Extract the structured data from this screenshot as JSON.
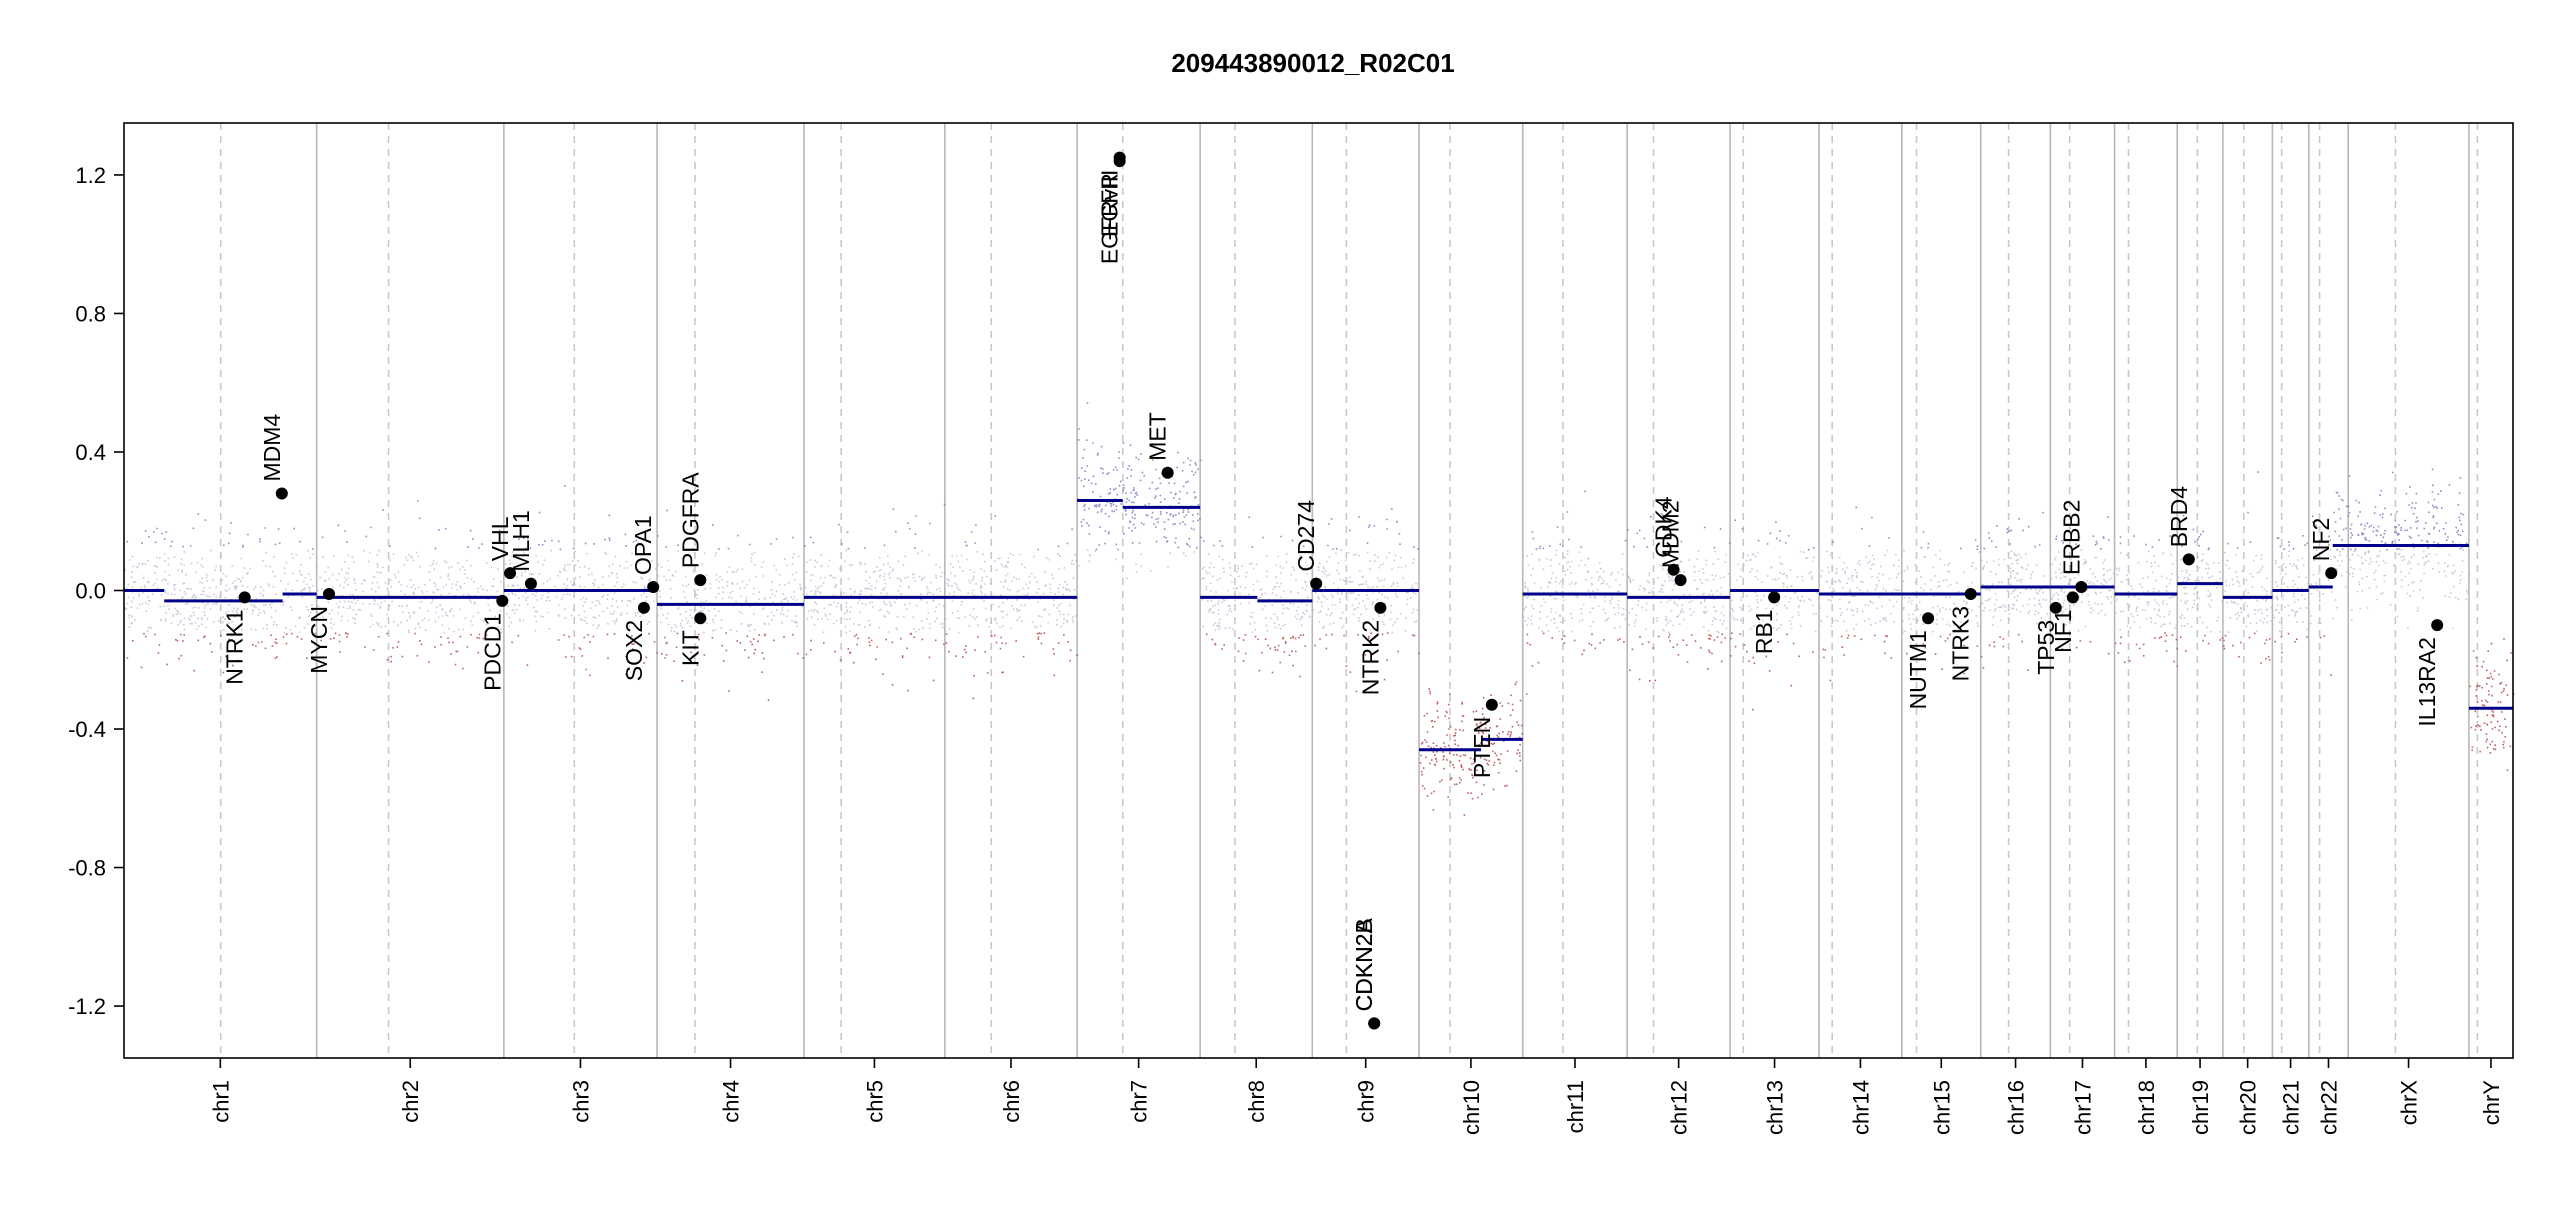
{
  "chart_data": {
    "type": "scatter",
    "title": "209443890012_R02C01",
    "xlabel": "",
    "ylabel": "",
    "ylim": [
      -1.35,
      1.35
    ],
    "y_ticks": [
      -1.2,
      -0.8,
      -0.4,
      0.0,
      0.4,
      0.8,
      1.2
    ],
    "y_tick_labels": [
      "-1.2",
      "-0.8",
      "-0.4",
      "0.0",
      "0.4",
      "0.8",
      "1.2"
    ],
    "grid": false,
    "colors": {
      "segment": "#00008b",
      "gain_points": "#7b7bbd",
      "loss_points": "#b24a4a",
      "neutral_points": "#bcbcd6",
      "chromosome_border": "#b8b8b8",
      "centromere_line": "#c8c8c8",
      "gene_point": "#000000"
    },
    "chromosomes": [
      {
        "name": "chr1",
        "start": 0.0,
        "end": 249.0,
        "centromere": 125.0
      },
      {
        "name": "chr2",
        "start": 249.0,
        "end": 491.0,
        "centromere": 342.0
      },
      {
        "name": "chr3",
        "start": 491.0,
        "end": 689.0,
        "centromere": 582.0
      },
      {
        "name": "chr4",
        "start": 689.0,
        "end": 879.0,
        "centromere": 738.0
      },
      {
        "name": "chr5",
        "start": 879.0,
        "end": 1061.0,
        "centromere": 927.0
      },
      {
        "name": "chr6",
        "start": 1061.0,
        "end": 1232.0,
        "centromere": 1121.0
      },
      {
        "name": "chr7",
        "start": 1232.0,
        "end": 1391.0,
        "centromere": 1291.0
      },
      {
        "name": "chr8",
        "start": 1391.0,
        "end": 1536.0,
        "centromere": 1436.0
      },
      {
        "name": "chr9",
        "start": 1536.0,
        "end": 1674.0,
        "centromere": 1580.0
      },
      {
        "name": "chr10",
        "start": 1674.0,
        "end": 1808.0,
        "centromere": 1714.0
      },
      {
        "name": "chr11",
        "start": 1808.0,
        "end": 1943.0,
        "centromere": 1860.0
      },
      {
        "name": "chr12",
        "start": 1943.0,
        "end": 2076.0,
        "centromere": 1977.0
      },
      {
        "name": "chr13",
        "start": 2076.0,
        "end": 2191.0,
        "centromere": 2093.0
      },
      {
        "name": "chr14",
        "start": 2191.0,
        "end": 2298.0,
        "centromere": 2208.0
      },
      {
        "name": "chr15",
        "start": 2298.0,
        "end": 2400.0,
        "centromere": 2317.0
      },
      {
        "name": "chr16",
        "start": 2400.0,
        "end": 2490.0,
        "centromere": 2436.0
      },
      {
        "name": "chr17",
        "start": 2490.0,
        "end": 2573.0,
        "centromere": 2515.0
      },
      {
        "name": "chr18",
        "start": 2573.0,
        "end": 2654.0,
        "centromere": 2591.0
      },
      {
        "name": "chr19",
        "start": 2654.0,
        "end": 2713.0,
        "centromere": 2680.0
      },
      {
        "name": "chr20",
        "start": 2713.0,
        "end": 2777.0,
        "centromere": 2740.0
      },
      {
        "name": "chr21",
        "start": 2777.0,
        "end": 2824.0,
        "centromere": 2789.0
      },
      {
        "name": "chr22",
        "start": 2824.0,
        "end": 2875.0,
        "centromere": 2838.0
      },
      {
        "name": "chrX",
        "start": 2875.0,
        "end": 3031.0,
        "centromere": 2936.0
      },
      {
        "name": "chrY",
        "start": 3031.0,
        "end": 3088.0,
        "centromere": 3042.0
      }
    ],
    "x_range": [
      0,
      3088
    ],
    "segments": [
      {
        "start": 0.0,
        "end": 52.0,
        "value": 0.0
      },
      {
        "start": 52.0,
        "end": 205.0,
        "value": -0.03
      },
      {
        "start": 205.0,
        "end": 249.0,
        "value": -0.01
      },
      {
        "start": 249.0,
        "end": 491.0,
        "value": -0.02
      },
      {
        "start": 491.0,
        "end": 689.0,
        "value": 0.0
      },
      {
        "start": 689.0,
        "end": 879.0,
        "value": -0.04
      },
      {
        "start": 879.0,
        "end": 1232.0,
        "value": -0.02
      },
      {
        "start": 1232.0,
        "end": 1291.0,
        "value": 0.26
      },
      {
        "start": 1291.0,
        "end": 1391.0,
        "value": 0.24
      },
      {
        "start": 1391.0,
        "end": 1465.0,
        "value": -0.02
      },
      {
        "start": 1465.0,
        "end": 1536.0,
        "value": -0.03
      },
      {
        "start": 1536.0,
        "end": 1550.0,
        "value": 0.0
      },
      {
        "start": 1550.0,
        "end": 1580.0,
        "value": 0.0
      },
      {
        "start": 1580.0,
        "end": 1674.0,
        "value": 0.0
      },
      {
        "start": 1674.0,
        "end": 1754.0,
        "value": -0.46
      },
      {
        "start": 1754.0,
        "end": 1808.0,
        "value": -0.43
      },
      {
        "start": 1808.0,
        "end": 1943.0,
        "value": -0.01
      },
      {
        "start": 1943.0,
        "end": 2076.0,
        "value": -0.02
      },
      {
        "start": 2076.0,
        "end": 2191.0,
        "value": 0.0
      },
      {
        "start": 2191.0,
        "end": 2298.0,
        "value": -0.01
      },
      {
        "start": 2298.0,
        "end": 2400.0,
        "value": -0.01
      },
      {
        "start": 2400.0,
        "end": 2490.0,
        "value": 0.01
      },
      {
        "start": 2490.0,
        "end": 2573.0,
        "value": 0.01
      },
      {
        "start": 2573.0,
        "end": 2654.0,
        "value": -0.01
      },
      {
        "start": 2654.0,
        "end": 2713.0,
        "value": 0.02
      },
      {
        "start": 2713.0,
        "end": 2777.0,
        "value": -0.02
      },
      {
        "start": 2777.0,
        "end": 2824.0,
        "value": 0.0
      },
      {
        "start": 2824.0,
        "end": 2855.0,
        "value": 0.01
      },
      {
        "start": 2855.0,
        "end": 3031.0,
        "value": 0.13
      },
      {
        "start": 3031.0,
        "end": 3088.0,
        "value": -0.34
      }
    ],
    "genes": [
      {
        "name": "NTRK1",
        "x": 156.0,
        "y": -0.02,
        "label_side": "below"
      },
      {
        "name": "MDM4",
        "x": 204.0,
        "y": 0.28,
        "label_side": "above"
      },
      {
        "name": "MYCN",
        "x": 265.0,
        "y": -0.01,
        "label_side": "below"
      },
      {
        "name": "PDCD1",
        "x": 489.0,
        "y": -0.03,
        "label_side": "below"
      },
      {
        "name": "VHL",
        "x": 499.0,
        "y": 0.05,
        "label_side": "above"
      },
      {
        "name": "MLH1",
        "x": 526.0,
        "y": 0.02,
        "label_side": "above"
      },
      {
        "name": "SOX2",
        "x": 672.0,
        "y": -0.05,
        "label_side": "below"
      },
      {
        "name": "OPA1",
        "x": 684.0,
        "y": 0.01,
        "label_side": "above"
      },
      {
        "name": "KIT",
        "x": 745.0,
        "y": -0.08,
        "label_side": "below"
      },
      {
        "name": "PDGFRA",
        "x": 745.0,
        "y": 0.03,
        "label_side": "above"
      },
      {
        "name": "EGFR",
        "x": 1287.0,
        "y": 1.24,
        "label_side": "below"
      },
      {
        "name": "EGFRvIII",
        "x": 1287.0,
        "y": 1.25,
        "label_side": "below"
      },
      {
        "name": "MET",
        "x": 1349.0,
        "y": 0.34,
        "label_side": "above"
      },
      {
        "name": "CD274",
        "x": 1541.0,
        "y": 0.02,
        "label_side": "above"
      },
      {
        "name": "CDKN2A",
        "x": 1616.0,
        "y": -1.25,
        "label_side": "above"
      },
      {
        "name": "CDKN2B",
        "x": 1616.0,
        "y": -1.25,
        "label_side": "above"
      },
      {
        "name": "NTRK2",
        "x": 1624.0,
        "y": -0.05,
        "label_side": "below"
      },
      {
        "name": "PTEN",
        "x": 1768.0,
        "y": -0.33,
        "label_side": "below"
      },
      {
        "name": "CDK4",
        "x": 2003.0,
        "y": 0.06,
        "label_side": "above"
      },
      {
        "name": "MDM2",
        "x": 2012.0,
        "y": 0.03,
        "label_side": "above"
      },
      {
        "name": "RB1",
        "x": 2133.0,
        "y": -0.02,
        "label_side": "below"
      },
      {
        "name": "NUTM1",
        "x": 2332.0,
        "y": -0.08,
        "label_side": "below"
      },
      {
        "name": "NTRK3",
        "x": 2387.0,
        "y": -0.01,
        "label_side": "below"
      },
      {
        "name": "TP53",
        "x": 2497.0,
        "y": -0.05,
        "label_side": "below"
      },
      {
        "name": "NF1",
        "x": 2519.0,
        "y": -0.02,
        "label_side": "below"
      },
      {
        "name": "ERBB2",
        "x": 2530.0,
        "y": 0.01,
        "label_side": "above"
      },
      {
        "name": "BRD4",
        "x": 2669.0,
        "y": 0.09,
        "label_side": "above"
      },
      {
        "name": "NF2",
        "x": 2853.0,
        "y": 0.05,
        "label_side": "above"
      },
      {
        "name": "IL13RA2",
        "x": 2990.0,
        "y": -0.1,
        "label_side": "below"
      }
    ]
  }
}
